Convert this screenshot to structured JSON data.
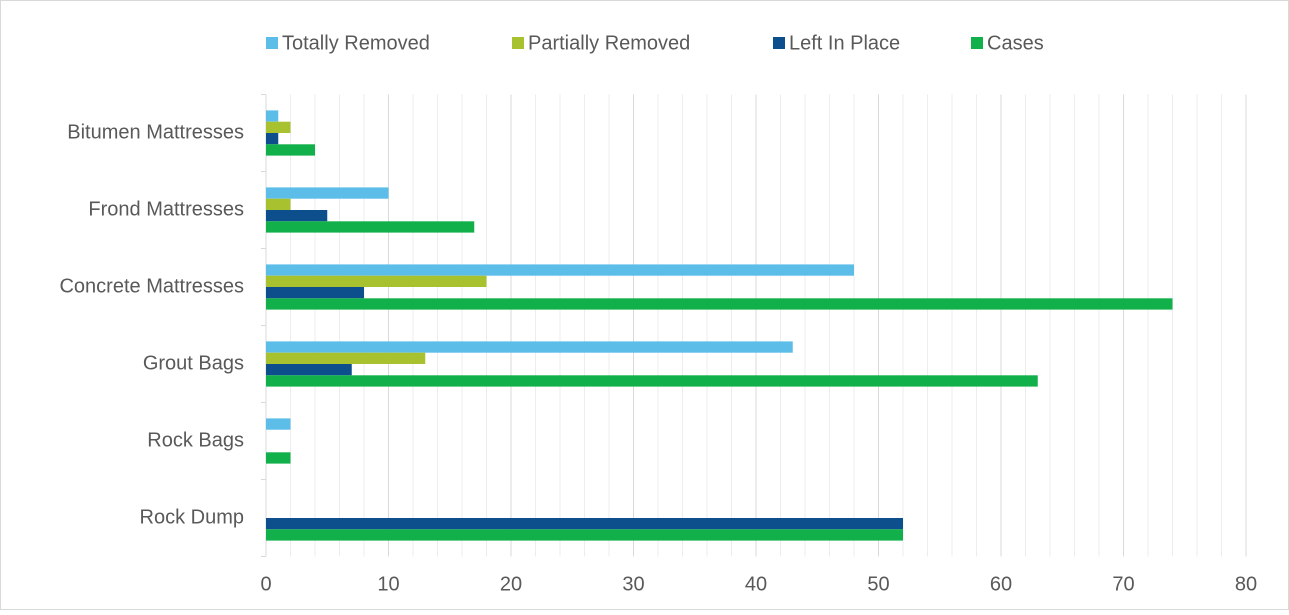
{
  "chart_data": {
    "type": "barh",
    "categories": [
      "Bitumen Mattresses",
      "Frond Mattresses",
      "Concrete Mattresses",
      "Grout Bags",
      "Rock Bags",
      "Rock Dump"
    ],
    "series": [
      {
        "name": "Totally Removed",
        "color": "#5bbde8",
        "values": [
          1,
          10,
          48,
          43,
          2,
          0
        ]
      },
      {
        "name": "Partially Removed",
        "color": "#a8c22f",
        "values": [
          2,
          2,
          18,
          13,
          0,
          0
        ]
      },
      {
        "name": "Left In Place",
        "color": "#0d4e8c",
        "values": [
          1,
          5,
          8,
          7,
          0,
          52
        ]
      },
      {
        "name": "Cases",
        "color": "#12b04a",
        "values": [
          4,
          17,
          74,
          63,
          2,
          52
        ]
      }
    ],
    "xlim": [
      0,
      80
    ],
    "xticks": [
      0,
      10,
      20,
      30,
      40,
      50,
      60,
      70,
      80
    ],
    "xminorticks": [
      2,
      4,
      6,
      8,
      12,
      14,
      16,
      18,
      22,
      24,
      26,
      28,
      32,
      34,
      36,
      38,
      42,
      44,
      46,
      48,
      52,
      54,
      56,
      58,
      62,
      64,
      66,
      68,
      72,
      74,
      76,
      78
    ],
    "grid": true,
    "legend": "top"
  }
}
